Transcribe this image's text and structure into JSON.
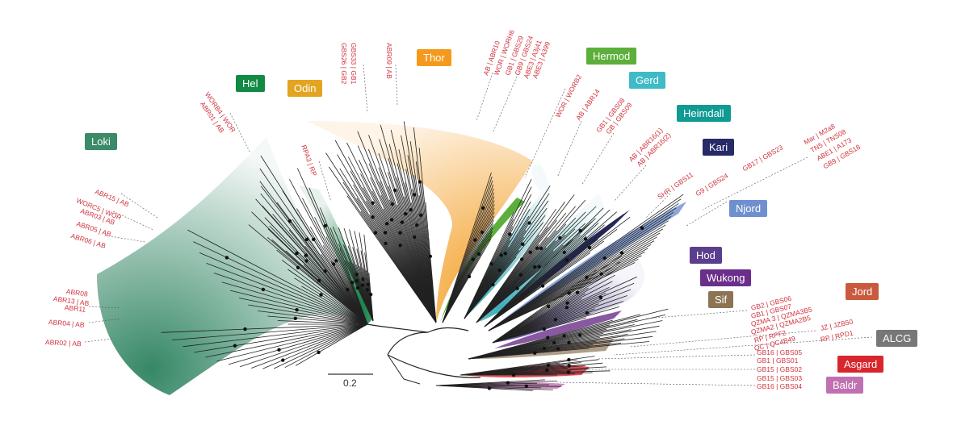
{
  "clades": [
    {
      "name": "Loki",
      "color": "#3b8a68"
    },
    {
      "name": "Hel",
      "color": "#118a43"
    },
    {
      "name": "Odin",
      "color": "#e2a421"
    },
    {
      "name": "Thor",
      "color": "#f39a1c"
    },
    {
      "name": "Hermod",
      "color": "#5caf3a"
    },
    {
      "name": "Gerd",
      "color": "#3fbac7"
    },
    {
      "name": "Heimdall",
      "color": "#109a94"
    },
    {
      "name": "Kari",
      "color": "#262a66"
    },
    {
      "name": "Njord",
      "color": "#6f90cf"
    },
    {
      "name": "Hod",
      "color": "#5b3f8e"
    },
    {
      "name": "Wukong",
      "color": "#6a2f8a"
    },
    {
      "name": "Sif",
      "color": "#8b7354"
    },
    {
      "name": "Jord",
      "color": "#c95a3d"
    },
    {
      "name": "ALCG",
      "color": "#777777"
    },
    {
      "name": "Asgard",
      "color": "#d8262d"
    },
    {
      "name": "Baldr",
      "color": "#c071b1"
    }
  ],
  "leaf_labels": [
    "ABR15 | AB",
    "WORC5 | WOR",
    "ABR03 | AB",
    "ABR05 | AB",
    "ABR06 | AB",
    "ABR08",
    "ABR13 | AB",
    "ABR11",
    "ABR04 | AB",
    "ABR02 | AB",
    "WORB4 | WOR",
    "ABR01 | AB",
    "RPA3 | RP",
    "GBS33 | GB1",
    "GBS26 | GB2",
    "ABR09 | AB",
    "AB | ABR10",
    "WOR | WORH6",
    "GB1 | GBS29",
    "GB9 | GBS24",
    "ABE3 | A3j41",
    "ABE3 | A399",
    "WOR | WORB2",
    "AB | ABR14",
    "GB1 | GBS08",
    "GB | GBS09",
    "AB | ABR16(1)",
    "AB | ABR16(2)",
    "SHR | GBS11",
    "G9 | GBS24",
    "GB17 | GBS23",
    "Mar | M2a8",
    "TN5 | TNS08",
    "ABE1 | A173",
    "GB9 | GBS18",
    "GB2 | GBS06",
    "GB1 | GBS07",
    "QZMA 3 | QZMA3B5",
    "QZMA2 | QZMA2B5",
    "RP | RPF2",
    "QC | QC4B49",
    "JZ | JZB50",
    "RP | RPD1",
    "GB16 | GBS05",
    "GB1 | GBS01",
    "GB15 | GBS02",
    "GB15 | GBS03",
    "GB16 | GBS04"
  ],
  "scale_bar": {
    "label": "0.2"
  }
}
